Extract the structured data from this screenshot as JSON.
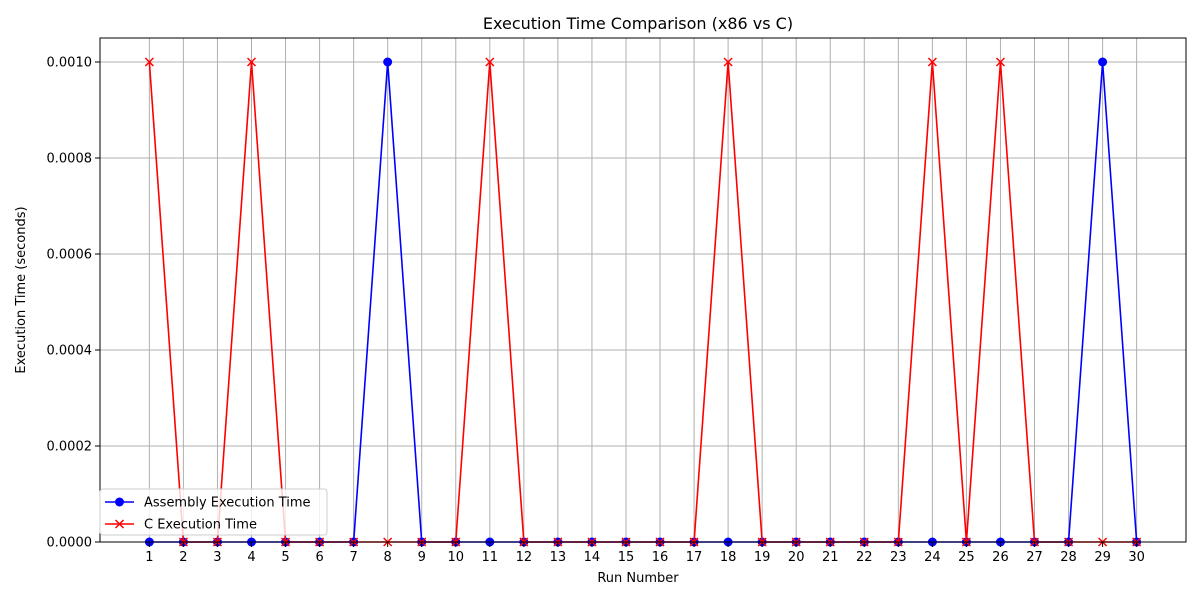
{
  "chart_data": {
    "type": "line",
    "title": "Execution Time Comparison (x86 vs C)",
    "xlabel": "Run Number",
    "ylabel": "Execution Time (seconds)",
    "x": [
      1,
      2,
      3,
      4,
      5,
      6,
      7,
      8,
      9,
      10,
      11,
      12,
      13,
      14,
      15,
      16,
      17,
      18,
      19,
      20,
      21,
      22,
      23,
      24,
      25,
      26,
      27,
      28,
      29,
      30
    ],
    "xlim": [
      -0.45,
      31.45
    ],
    "ylim": [
      0,
      0.00105
    ],
    "yticks": [
      0.0,
      0.0002,
      0.0004,
      0.0006,
      0.0008,
      0.001
    ],
    "ytick_labels": [
      "0.0000",
      "0.0002",
      "0.0004",
      "0.0006",
      "0.0008",
      "0.0010"
    ],
    "xtick_labels": [
      "1",
      "2",
      "3",
      "4",
      "5",
      "6",
      "7",
      "8",
      "9",
      "10",
      "11",
      "12",
      "13",
      "14",
      "15",
      "16",
      "17",
      "18",
      "19",
      "20",
      "21",
      "22",
      "23",
      "24",
      "25",
      "26",
      "27",
      "28",
      "29",
      "30"
    ],
    "grid": true,
    "legend_position": "lower-left",
    "series": [
      {
        "name": "Assembly Execution Time",
        "color": "#0000ff",
        "marker": "circle",
        "values": [
          0,
          0,
          0,
          0,
          0,
          0,
          0,
          0.001,
          0,
          0,
          0,
          0,
          0,
          0,
          0,
          0,
          0,
          0,
          0,
          0,
          0,
          0,
          0,
          0,
          0,
          0,
          0,
          0,
          0.001,
          0
        ]
      },
      {
        "name": "C Execution Time",
        "color": "#ff0000",
        "marker": "x",
        "values": [
          0.001,
          0,
          0,
          0.001,
          0,
          0,
          0,
          0,
          0,
          0,
          0.001,
          0,
          0,
          0,
          0,
          0,
          0,
          0.001,
          0,
          0,
          0,
          0,
          0,
          0.001,
          0,
          0.001,
          0,
          0,
          0,
          0
        ]
      }
    ]
  }
}
